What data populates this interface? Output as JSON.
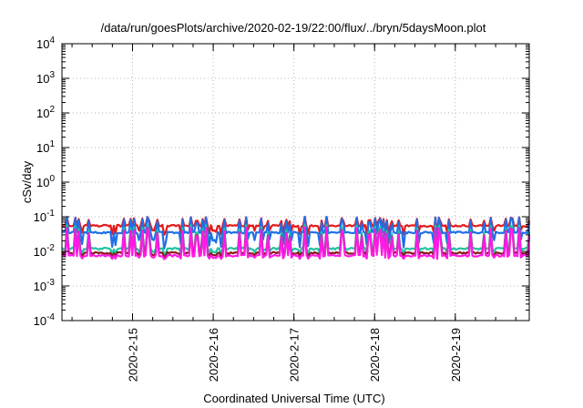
{
  "chart_data": {
    "type": "line",
    "title": "/data/run/goesPlots/archive/2020-02-19/22:00/flux/../bryn/5daysMoon.plot",
    "xlabel": "Coordinated Universal Time (UTC)",
    "ylabel": "cSv/day",
    "y_scale": "log",
    "ylim": [
      0.0001,
      10000
    ],
    "y_ticks": [
      {
        "value": 10000,
        "base": "10",
        "exp": "4"
      },
      {
        "value": 1000,
        "base": "10",
        "exp": "3"
      },
      {
        "value": 100,
        "base": "10",
        "exp": "2"
      },
      {
        "value": 10,
        "base": "10",
        "exp": "1"
      },
      {
        "value": 1,
        "base": "10",
        "exp": "0"
      },
      {
        "value": 0.1,
        "base": "10",
        "exp": "-1"
      },
      {
        "value": 0.01,
        "base": "10",
        "exp": "-2"
      },
      {
        "value": 0.001,
        "base": "10",
        "exp": "-3"
      },
      {
        "value": 0.0001,
        "base": "10",
        "exp": "-4"
      }
    ],
    "xlim": [
      "2020-02-14T03:00",
      "2020-02-19T22:00"
    ],
    "x_ticks": [
      {
        "value": "2020-02-15T00:00",
        "label": "2020-2-15"
      },
      {
        "value": "2020-02-16T00:00",
        "label": "2020-2-16"
      },
      {
        "value": "2020-02-17T00:00",
        "label": "2020-2-17"
      },
      {
        "value": "2020-02-18T00:00",
        "label": "2020-2-18"
      },
      {
        "value": "2020-02-19T00:00",
        "label": "2020-2-19"
      }
    ],
    "grid": true,
    "legend": "none",
    "series": [
      {
        "color": "#e41a1c",
        "base": 0.055,
        "spike_max": 0.1,
        "dip_min": 0.03
      },
      {
        "color": "#1f6fe8",
        "base": 0.035,
        "spike_max": 0.1,
        "dip_min": 0.012
      },
      {
        "color": "#20c4a0",
        "base": 0.012,
        "spike_max": 0.06,
        "dip_min": 0.008
      },
      {
        "color": "#8b1a1a",
        "base": 0.009,
        "spike_max": 0.05,
        "dip_min": 0.007
      },
      {
        "color": "#ff1ae6",
        "base": 0.0075,
        "spike_max": 0.05,
        "dip_min": 0.006
      }
    ]
  }
}
